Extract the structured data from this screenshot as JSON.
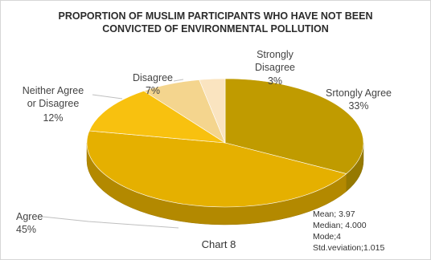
{
  "chart_data": {
    "type": "pie",
    "title_line1": "PROPORTION OF MUSLIM PARTICIPANTS WHO HAVE NOT BEEN",
    "title_line2": "CONVICTED OF ENVIRONMENTAL POLLUTION",
    "caption": "Chart 8",
    "slices": [
      {
        "label": "Srtongly Agree",
        "value": 33,
        "text": "33%",
        "color": "#c09b00"
      },
      {
        "label": "Agree",
        "value": 45,
        "text": "45%",
        "color": "#e5b000"
      },
      {
        "label": "Neither Agree or Disagree",
        "value": 12,
        "text": "12%",
        "color": "#f8c10f"
      },
      {
        "label": "Disagree",
        "value": 7,
        "text": "7%",
        "color": "#f4d58e"
      },
      {
        "label": "Strongly Disagree",
        "value": 3,
        "text": "3%",
        "color": "#fae4c0"
      }
    ],
    "stats": [
      "Mean; 3.97",
      "Median; 4.000",
      "Mode;4",
      "Std.veviation;1.015"
    ]
  }
}
